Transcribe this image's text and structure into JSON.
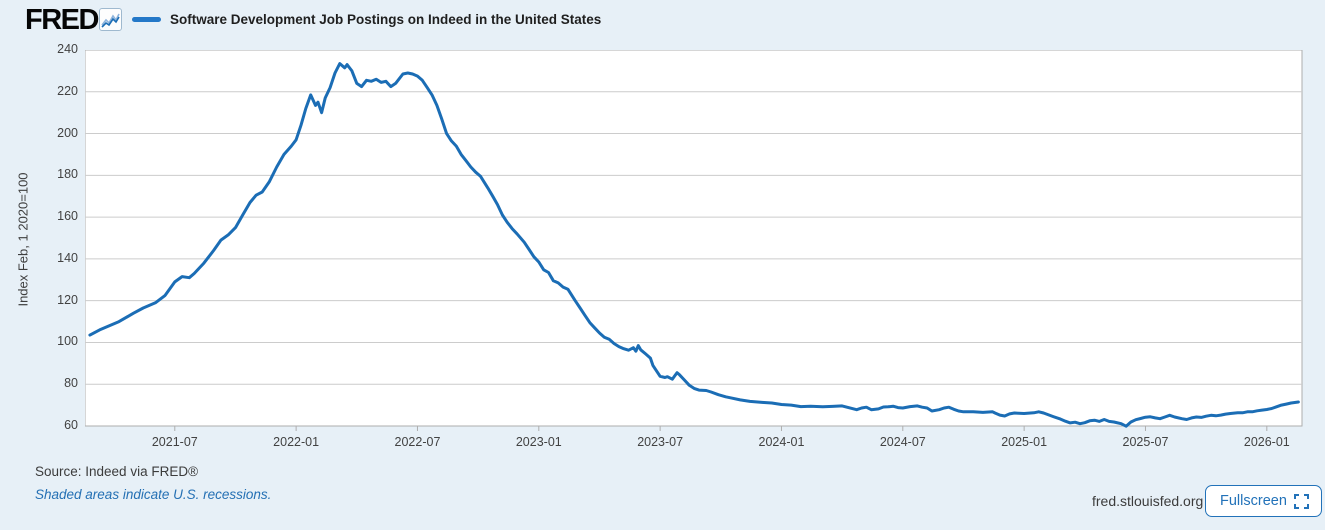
{
  "header": {
    "logo_text": "FRED",
    "series_title": "Software Development Job Postings on Indeed in the United States"
  },
  "footer": {
    "source": "Source: Indeed via FRED®",
    "recession_note": "Shaded areas indicate U.S. recessions.",
    "site": "fred.stlouisfed.org",
    "fullscreen_label": "Fullscreen"
  },
  "icons": {
    "fred_logo_chart_icon": "line-chart-squiggle",
    "fullscreen_icon": "expand-corners"
  },
  "colors": {
    "background": "#e7f0f7",
    "plot_background": "#ffffff",
    "line": "#1b6db5",
    "legend_dash": "#2478c8",
    "grid": "#cccccc",
    "plot_border": "#aeaeae",
    "tick_text": "#424242",
    "blue_text": "#2470b4",
    "button_blue": "#2272b9"
  },
  "chart_data": {
    "type": "line",
    "title": "Software Development Job Postings on Indeed in the United States",
    "xlabel": "",
    "ylabel": "Index Feb, 1 2020=100",
    "legend_position": "top",
    "grid": "horizontal",
    "ylim": [
      60,
      240
    ],
    "xlim": [
      2021.13,
      2026.145
    ],
    "yticks": [
      60,
      80,
      100,
      120,
      140,
      160,
      180,
      200,
      220,
      240
    ],
    "xticks": [
      {
        "t": 2021.5,
        "label": "2021-07"
      },
      {
        "t": 2022.0,
        "label": "2022-01"
      },
      {
        "t": 2022.5,
        "label": "2022-07"
      },
      {
        "t": 2023.0,
        "label": "2023-01"
      },
      {
        "t": 2023.5,
        "label": "2023-07"
      },
      {
        "t": 2024.0,
        "label": "2024-01"
      },
      {
        "t": 2024.5,
        "label": "2024-07"
      },
      {
        "t": 2025.0,
        "label": "2025-01"
      },
      {
        "t": 2025.5,
        "label": "2025-07"
      },
      {
        "t": 2026.0,
        "label": "2026-01"
      }
    ],
    "series": [
      {
        "name": "Software Development Job Postings on Indeed in the United States",
        "points": [
          [
            2021.15,
            103.5
          ],
          [
            2021.19,
            106
          ],
          [
            2021.23,
            108
          ],
          [
            2021.27,
            110
          ],
          [
            2021.33,
            114
          ],
          [
            2021.37,
            116.5
          ],
          [
            2021.42,
            119
          ],
          [
            2021.46,
            122.5
          ],
          [
            2021.5,
            129
          ],
          [
            2021.53,
            131.5
          ],
          [
            2021.56,
            131
          ],
          [
            2021.58,
            133
          ],
          [
            2021.62,
            138
          ],
          [
            2021.66,
            144
          ],
          [
            2021.69,
            149
          ],
          [
            2021.72,
            151.5
          ],
          [
            2021.75,
            155
          ],
          [
            2021.78,
            161
          ],
          [
            2021.81,
            167
          ],
          [
            2021.835,
            170.5
          ],
          [
            2021.86,
            172
          ],
          [
            2021.89,
            177
          ],
          [
            2021.92,
            184
          ],
          [
            2021.95,
            190
          ],
          [
            2021.98,
            194
          ],
          [
            2022.0,
            197
          ],
          [
            2022.02,
            204
          ],
          [
            2022.04,
            212
          ],
          [
            2022.06,
            218.5
          ],
          [
            2022.08,
            213.5
          ],
          [
            2022.09,
            215
          ],
          [
            2022.105,
            210
          ],
          [
            2022.12,
            217
          ],
          [
            2022.14,
            222
          ],
          [
            2022.16,
            229
          ],
          [
            2022.18,
            233.5
          ],
          [
            2022.2,
            231.5
          ],
          [
            2022.21,
            233
          ],
          [
            2022.23,
            230
          ],
          [
            2022.25,
            224
          ],
          [
            2022.27,
            222.5
          ],
          [
            2022.29,
            225.5
          ],
          [
            2022.31,
            225
          ],
          [
            2022.33,
            226
          ],
          [
            2022.35,
            224.5
          ],
          [
            2022.37,
            225
          ],
          [
            2022.39,
            222.5
          ],
          [
            2022.41,
            224
          ],
          [
            2022.44,
            228.5
          ],
          [
            2022.46,
            229
          ],
          [
            2022.48,
            228.5
          ],
          [
            2022.5,
            227.5
          ],
          [
            2022.52,
            225.5
          ],
          [
            2022.54,
            222
          ],
          [
            2022.56,
            218.5
          ],
          [
            2022.58,
            213.5
          ],
          [
            2022.6,
            207
          ],
          [
            2022.62,
            200
          ],
          [
            2022.64,
            196.5
          ],
          [
            2022.66,
            194
          ],
          [
            2022.68,
            190
          ],
          [
            2022.7,
            187
          ],
          [
            2022.72,
            184
          ],
          [
            2022.74,
            181.5
          ],
          [
            2022.76,
            179.5
          ],
          [
            2022.79,
            174
          ],
          [
            2022.81,
            170
          ],
          [
            2022.83,
            166
          ],
          [
            2022.85,
            161
          ],
          [
            2022.87,
            157.5
          ],
          [
            2022.89,
            154.5
          ],
          [
            2022.91,
            152
          ],
          [
            2022.94,
            148
          ],
          [
            2022.96,
            144.5
          ],
          [
            2022.98,
            141
          ],
          [
            2023.0,
            138.5
          ],
          [
            2023.02,
            134.8
          ],
          [
            2023.04,
            133.5
          ],
          [
            2023.06,
            129.5
          ],
          [
            2023.08,
            128.5
          ],
          [
            2023.1,
            126.5
          ],
          [
            2023.12,
            125.5
          ],
          [
            2023.15,
            120
          ],
          [
            2023.17,
            116.5
          ],
          [
            2023.19,
            113
          ],
          [
            2023.21,
            109.5
          ],
          [
            2023.23,
            107
          ],
          [
            2023.25,
            104.5
          ],
          [
            2023.27,
            102.5
          ],
          [
            2023.29,
            101.5
          ],
          [
            2023.31,
            99.5
          ],
          [
            2023.33,
            98
          ],
          [
            2023.35,
            97
          ],
          [
            2023.37,
            96.3
          ],
          [
            2023.39,
            97.5
          ],
          [
            2023.4,
            95.8
          ],
          [
            2023.41,
            98.5
          ],
          [
            2023.42,
            96.5
          ],
          [
            2023.44,
            94.5
          ],
          [
            2023.46,
            92.5
          ],
          [
            2023.47,
            89
          ],
          [
            2023.49,
            85.5
          ],
          [
            2023.5,
            83.8
          ],
          [
            2023.52,
            83.2
          ],
          [
            2023.53,
            83.6
          ],
          [
            2023.55,
            82.4
          ],
          [
            2023.56,
            84
          ],
          [
            2023.57,
            85.5
          ],
          [
            2023.58,
            84.5
          ],
          [
            2023.6,
            82
          ],
          [
            2023.62,
            79.5
          ],
          [
            2023.64,
            78
          ],
          [
            2023.66,
            77.2
          ],
          [
            2023.69,
            77
          ],
          [
            2023.71,
            76.3
          ],
          [
            2023.74,
            75
          ],
          [
            2023.77,
            74
          ],
          [
            2023.79,
            73.5
          ],
          [
            2023.83,
            72.5
          ],
          [
            2023.87,
            71.8
          ],
          [
            2023.92,
            71.3
          ],
          [
            2023.96,
            71
          ],
          [
            2024.0,
            70.3
          ],
          [
            2024.04,
            70
          ],
          [
            2024.08,
            69.3
          ],
          [
            2024.12,
            69.5
          ],
          [
            2024.17,
            69.2
          ],
          [
            2024.21,
            69.4
          ],
          [
            2024.25,
            69.6
          ],
          [
            2024.28,
            68.7
          ],
          [
            2024.31,
            67.8
          ],
          [
            2024.33,
            68.6
          ],
          [
            2024.35,
            69
          ],
          [
            2024.37,
            67.8
          ],
          [
            2024.4,
            68.2
          ],
          [
            2024.42,
            69.1
          ],
          [
            2024.44,
            69.2
          ],
          [
            2024.46,
            69.5
          ],
          [
            2024.48,
            68.8
          ],
          [
            2024.5,
            68.6
          ],
          [
            2024.53,
            69.3
          ],
          [
            2024.56,
            69.6
          ],
          [
            2024.58,
            69
          ],
          [
            2024.6,
            68.6
          ],
          [
            2024.62,
            67.2
          ],
          [
            2024.65,
            67.8
          ],
          [
            2024.67,
            68.6
          ],
          [
            2024.69,
            69
          ],
          [
            2024.71,
            68
          ],
          [
            2024.73,
            67.2
          ],
          [
            2024.75,
            66.8
          ],
          [
            2024.79,
            66.8
          ],
          [
            2024.83,
            66.5
          ],
          [
            2024.87,
            66.8
          ],
          [
            2024.88,
            66.2
          ],
          [
            2024.9,
            65.2
          ],
          [
            2024.92,
            64.8
          ],
          [
            2024.94,
            65.8
          ],
          [
            2024.96,
            66.2
          ],
          [
            2025.0,
            66
          ],
          [
            2025.04,
            66.3
          ],
          [
            2025.06,
            66.8
          ],
          [
            2025.08,
            66.2
          ],
          [
            2025.12,
            64.5
          ],
          [
            2025.15,
            63.3
          ],
          [
            2025.17,
            62.3
          ],
          [
            2025.19,
            61.5
          ],
          [
            2025.21,
            61.8
          ],
          [
            2025.23,
            61.1
          ],
          [
            2025.25,
            61.6
          ],
          [
            2025.27,
            62.5
          ],
          [
            2025.29,
            62.8
          ],
          [
            2025.31,
            62.2
          ],
          [
            2025.33,
            63.1
          ],
          [
            2025.35,
            62.2
          ],
          [
            2025.37,
            61.9
          ],
          [
            2025.4,
            61.1
          ],
          [
            2025.42,
            59.9
          ],
          [
            2025.44,
            61.9
          ],
          [
            2025.46,
            63
          ],
          [
            2025.48,
            63.6
          ],
          [
            2025.5,
            64.2
          ],
          [
            2025.52,
            64.4
          ],
          [
            2025.54,
            63.9
          ],
          [
            2025.56,
            63.5
          ],
          [
            2025.58,
            64.3
          ],
          [
            2025.6,
            65.1
          ],
          [
            2025.62,
            64.3
          ],
          [
            2025.65,
            63.5
          ],
          [
            2025.67,
            63.1
          ],
          [
            2025.69,
            63.9
          ],
          [
            2025.71,
            64.3
          ],
          [
            2025.73,
            64.1
          ],
          [
            2025.75,
            64.7
          ],
          [
            2025.77,
            65.1
          ],
          [
            2025.79,
            64.9
          ],
          [
            2025.81,
            65.2
          ],
          [
            2025.83,
            65.7
          ],
          [
            2025.85,
            66
          ],
          [
            2025.88,
            66.3
          ],
          [
            2025.9,
            66.3
          ],
          [
            2025.92,
            66.8
          ],
          [
            2025.94,
            66.8
          ],
          [
            2025.96,
            67.3
          ],
          [
            2025.98,
            67.6
          ],
          [
            2026.0,
            67.9
          ],
          [
            2026.02,
            68.4
          ],
          [
            2026.04,
            69.2
          ],
          [
            2026.06,
            70
          ],
          [
            2026.08,
            70.5
          ],
          [
            2026.1,
            71
          ],
          [
            2026.13,
            71.5
          ]
        ]
      }
    ]
  }
}
